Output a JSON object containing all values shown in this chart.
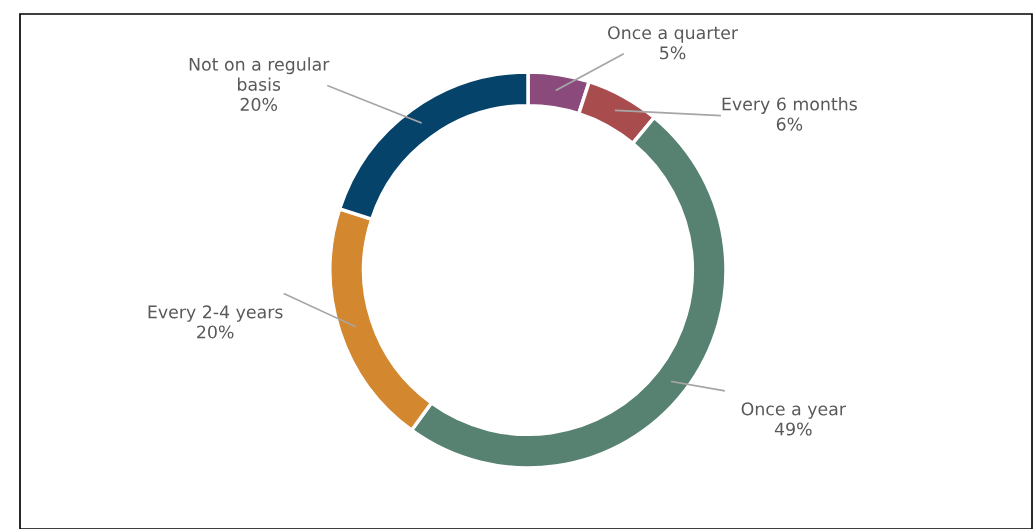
{
  "chart_data": {
    "type": "donut",
    "categories": [
      "Once a quarter",
      "Every 6 months",
      "Once a year",
      "Every 2-4 years",
      "Not on a regular basis"
    ],
    "values": [
      5,
      6,
      49,
      20,
      20
    ],
    "colors": [
      "#8a4a7c",
      "#a84c4d",
      "#578272",
      "#d3882f",
      "#05436a"
    ],
    "value_labels": [
      "5%",
      "6%",
      "49%",
      "20%",
      "20%"
    ]
  }
}
